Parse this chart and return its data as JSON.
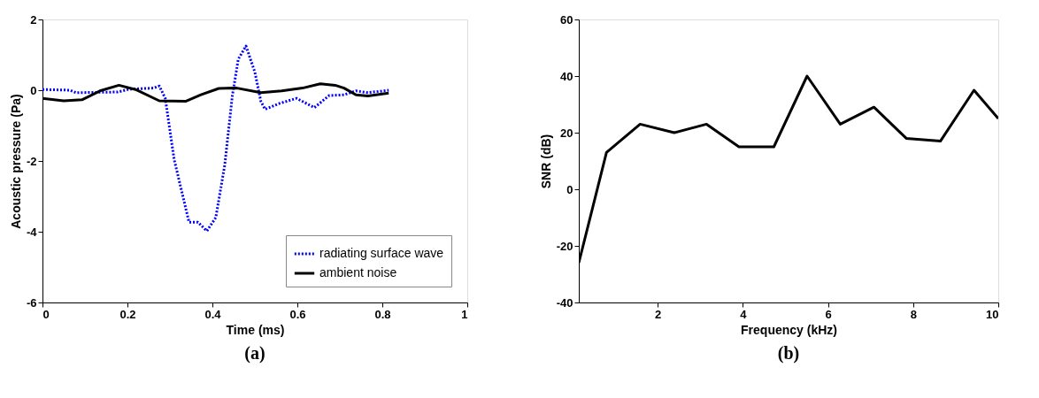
{
  "chart_data": [
    {
      "type": "line",
      "title": "(a)",
      "xlabel": "Time (ms)",
      "ylabel": "Acoustic pressure (Pa)",
      "xlim": [
        0,
        1
      ],
      "ylim": [
        -6,
        2
      ],
      "xticks": [
        0,
        0.2,
        0.4,
        0.6,
        0.8,
        1
      ],
      "yticks": [
        -6,
        -4,
        -2,
        0,
        2
      ],
      "legend": "bottom right",
      "grid": false,
      "series": [
        {
          "name": "radiating surface wave",
          "color": "#0000ff",
          "line_style": "dotted",
          "x": [
            0,
            0.065,
            0.079,
            0.177,
            0.205,
            0.261,
            0.275,
            0.289,
            0.31,
            0.345,
            0.366,
            0.387,
            0.408,
            0.429,
            0.447,
            0.461,
            0.479,
            0.5,
            0.514,
            0.524,
            0.556,
            0.598,
            0.64,
            0.675,
            0.71,
            0.738,
            0.766,
            0.815
          ],
          "values": [
            0.02,
            0,
            -0.07,
            -0.05,
            0.03,
            0.06,
            0.12,
            -0.23,
            -1.96,
            -3.73,
            -3.73,
            -3.98,
            -3.6,
            -2.12,
            -0.15,
            0.88,
            1.25,
            0.51,
            -0.31,
            -0.54,
            -0.38,
            -0.23,
            -0.49,
            -0.15,
            -0.13,
            -0.02,
            -0.07,
            0
          ]
        },
        {
          "name": "ambient noise",
          "color": "#000000",
          "line_style": "solid",
          "x": [
            0,
            0.05,
            0.093,
            0.135,
            0.18,
            0.219,
            0.275,
            0.338,
            0.373,
            0.415,
            0.458,
            0.514,
            0.563,
            0.612,
            0.654,
            0.689,
            0.71,
            0.738,
            0.766,
            0.815
          ],
          "values": [
            -0.23,
            -0.3,
            -0.27,
            -0.02,
            0.14,
            0.02,
            -0.3,
            -0.31,
            -0.13,
            0.05,
            0.06,
            -0.07,
            -0.02,
            0.06,
            0.18,
            0.14,
            0.06,
            -0.13,
            -0.16,
            -0.08
          ]
        }
      ]
    },
    {
      "type": "line",
      "title": "(b)",
      "xlabel": "Frequency (kHz)",
      "ylabel": "SNR (dB)",
      "xlim": [
        0.15,
        10
      ],
      "ylim": [
        -40,
        60
      ],
      "xticks": [
        2,
        4,
        6,
        8,
        10
      ],
      "yticks": [
        -40,
        -20,
        0,
        20,
        40,
        60
      ],
      "grid": false,
      "series": [
        {
          "color": "#000000",
          "line_style": "solid",
          "x": [
            0.15,
            0.8,
            1.59,
            2.39,
            3.15,
            3.91,
            4.73,
            5.51,
            6.29,
            7.08,
            7.84,
            8.64,
            9.43,
            10
          ],
          "values": [
            -26,
            13,
            23,
            20,
            23,
            15,
            15,
            40,
            23,
            29,
            18,
            17,
            35,
            25
          ]
        }
      ]
    }
  ]
}
